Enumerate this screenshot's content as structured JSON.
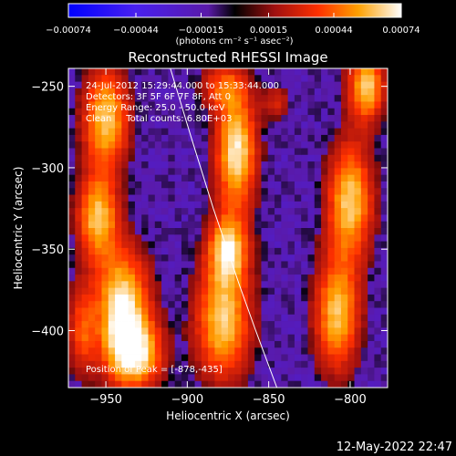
{
  "chart_data": {
    "type": "heatmap",
    "title": "Reconstructed RHESSI Image",
    "xlabel": "Heliocentric X (arcsec)",
    "ylabel": "Heliocentric Y (arcsec)",
    "xlim": [
      -973,
      -777
    ],
    "ylim": [
      -435,
      -239
    ],
    "x_ticks": [
      -950,
      -900,
      -850,
      -800
    ],
    "y_ticks": [
      -400,
      -350,
      -300,
      -250
    ],
    "x_tick_labels": [
      "−950",
      "−900",
      "−850",
      "−800"
    ],
    "y_tick_labels": [
      "−400",
      "−350",
      "−300",
      "−250"
    ],
    "colorbar": {
      "min": -0.00074,
      "max": 0.00074,
      "ticks": [
        -0.00074,
        -0.00044,
        -0.00015,
        0.00015,
        0.00044,
        0.00074
      ],
      "tick_labels": [
        "−0.00074",
        "−0.00044",
        "−0.00015",
        "0.00015",
        "0.00044",
        "0.00074"
      ],
      "unit_label": "(photons cm⁻² s⁻¹ asec⁻²)"
    },
    "annotations": [
      "24-Jul-2012 15:29:44.000 to 15:33:44.000",
      "Detectors: 3F 5F 6F 7F 8F, Att 0",
      "Energy Range: 25.0 - 50.0 keV",
      "Clean     Total counts: 6.80E+03"
    ],
    "peak_label": "Position of Peak = [-878,-435]",
    "peak_position": [
      -878,
      -435
    ],
    "limb_curve": [
      [
        -911,
        -237
      ],
      [
        -898,
        -280
      ],
      [
        -884,
        -325
      ],
      [
        -868,
        -372
      ],
      [
        -858,
        -400
      ],
      [
        -845,
        -435
      ]
    ],
    "sources": [
      {
        "x": -950,
        "y": -270,
        "sx": 10,
        "sy": 22,
        "amp": 0.9
      },
      {
        "x": -955,
        "y": -330,
        "sx": 9,
        "sy": 18,
        "amp": 0.85
      },
      {
        "x": -940,
        "y": -385,
        "sx": 12,
        "sy": 25,
        "amp": 1.0
      },
      {
        "x": -932,
        "y": -415,
        "sx": 12,
        "sy": 15,
        "amp": 0.85
      },
      {
        "x": -965,
        "y": -400,
        "sx": 6,
        "sy": 20,
        "amp": 0.5
      },
      {
        "x": -870,
        "y": -290,
        "sx": 9,
        "sy": 25,
        "amp": 1.0
      },
      {
        "x": -878,
        "y": -250,
        "sx": 10,
        "sy": 10,
        "amp": 0.5
      },
      {
        "x": -875,
        "y": -350,
        "sx": 9,
        "sy": 15,
        "amp": 0.85
      },
      {
        "x": -878,
        "y": -395,
        "sx": 12,
        "sy": 25,
        "amp": 0.9
      },
      {
        "x": -800,
        "y": -320,
        "sx": 10,
        "sy": 25,
        "amp": 0.9
      },
      {
        "x": -808,
        "y": -390,
        "sx": 10,
        "sy": 25,
        "amp": 0.85
      },
      {
        "x": -790,
        "y": -250,
        "sx": 8,
        "sy": 15,
        "amp": 0.9
      },
      {
        "x": -845,
        "y": -260,
        "sx": 6,
        "sy": 8,
        "amp": 0.35
      }
    ],
    "grid": false
  },
  "timestamp": "12-May-2022 22:47"
}
